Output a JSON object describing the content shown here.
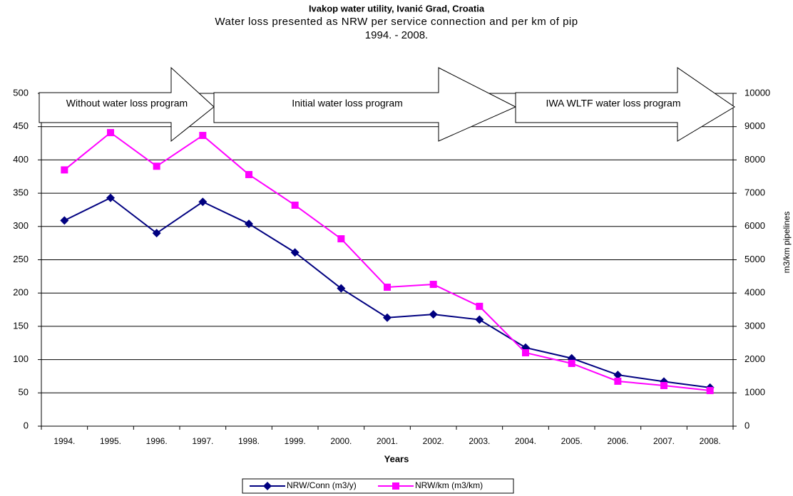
{
  "chart_data": {
    "type": "line",
    "title": "Ivakop water utility, Ivanić Grad, Croatia",
    "subtitle": "Water loss presented as NRW per service connection and per km of pip",
    "subtitle2": "1994. - 2008.",
    "xlabel": "Years",
    "y2label": "m3/km pipelines",
    "annotations": [
      "Without water loss program",
      "Initial water loss program",
      "IWA WLTF water loss program"
    ],
    "categories": [
      "1994.",
      "1995.",
      "1996.",
      "1997.",
      "1998.",
      "1999.",
      "2000.",
      "2001.",
      "2002.",
      "2003.",
      "2004.",
      "2005.",
      "2006.",
      "2007.",
      "2008."
    ],
    "series": [
      {
        "name": "NRW/Conn (m3/y)",
        "color": "#000080",
        "marker": "diamond",
        "axis": "y",
        "values": [
          309,
          343,
          290,
          337,
          304,
          261,
          207,
          163,
          168,
          160,
          118,
          102,
          77,
          67,
          58
        ]
      },
      {
        "name": "NRW/km (m3/km)",
        "color": "#ff00ff",
        "marker": "square",
        "axis": "y2",
        "values": [
          7700,
          8820,
          7810,
          8735,
          7560,
          6640,
          5630,
          4175,
          4260,
          3600,
          2205,
          1885,
          1350,
          1220,
          1070
        ]
      }
    ],
    "ylim": [
      0,
      500
    ],
    "yticks": [
      0,
      50,
      100,
      150,
      200,
      250,
      300,
      350,
      400,
      450,
      500
    ],
    "y2lim": [
      0,
      10000
    ],
    "y2ticks": [
      0,
      1000,
      2000,
      3000,
      4000,
      5000,
      6000,
      7000,
      8000,
      9000,
      10000
    ],
    "grid": true,
    "legend": "bottom"
  }
}
